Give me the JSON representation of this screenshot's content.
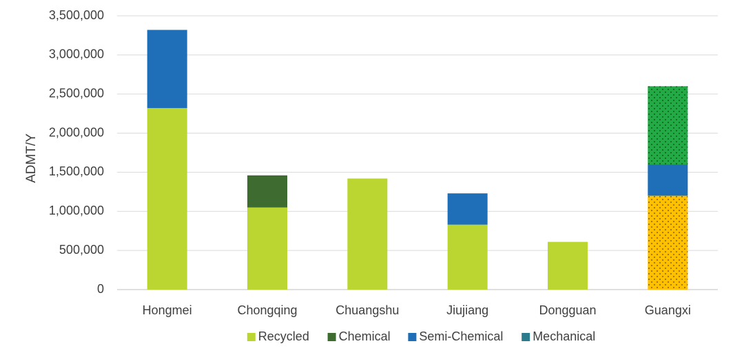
{
  "chart_data": {
    "type": "bar",
    "stacked": true,
    "title": "",
    "xlabel": "",
    "ylabel": "ADMT/Y",
    "ylim": [
      0,
      3500000
    ],
    "ytick_step": 500000,
    "yticks": [
      "0",
      "500,000",
      "1,000,000",
      "1,500,000",
      "2,000,000",
      "2,500,000",
      "3,000,000",
      "3,500,000"
    ],
    "grid": true,
    "legend_position": "bottom",
    "categories": [
      "Hongmei",
      "Chongqing",
      "Chuangshu",
      "Jiujiang",
      "Dongguan",
      "Guangxi"
    ],
    "series": [
      {
        "name": "Recycled",
        "color": "#BCD631",
        "values": [
          2320000,
          1050000,
          1420000,
          830000,
          610000,
          0
        ]
      },
      {
        "name": "Chemical",
        "color": "#3E6B30",
        "values": [
          0,
          410000,
          0,
          0,
          0,
          0
        ]
      },
      {
        "name": "Semi-Chemical",
        "color": "#1F6FB8",
        "values": [
          1000000,
          0,
          0,
          400000,
          0,
          400000
        ]
      },
      {
        "name": "Mechanical",
        "color": "#2A7B8C",
        "values": [
          0,
          0,
          0,
          0,
          0,
          0
        ]
      }
    ],
    "guangxi_extra_segments": [
      {
        "color": "#FFC000",
        "pattern": "dots",
        "value": 1200000,
        "position": "bottom"
      },
      {
        "color": "#22AA44",
        "pattern": "dots",
        "value": 1000000,
        "position": "top"
      }
    ]
  }
}
